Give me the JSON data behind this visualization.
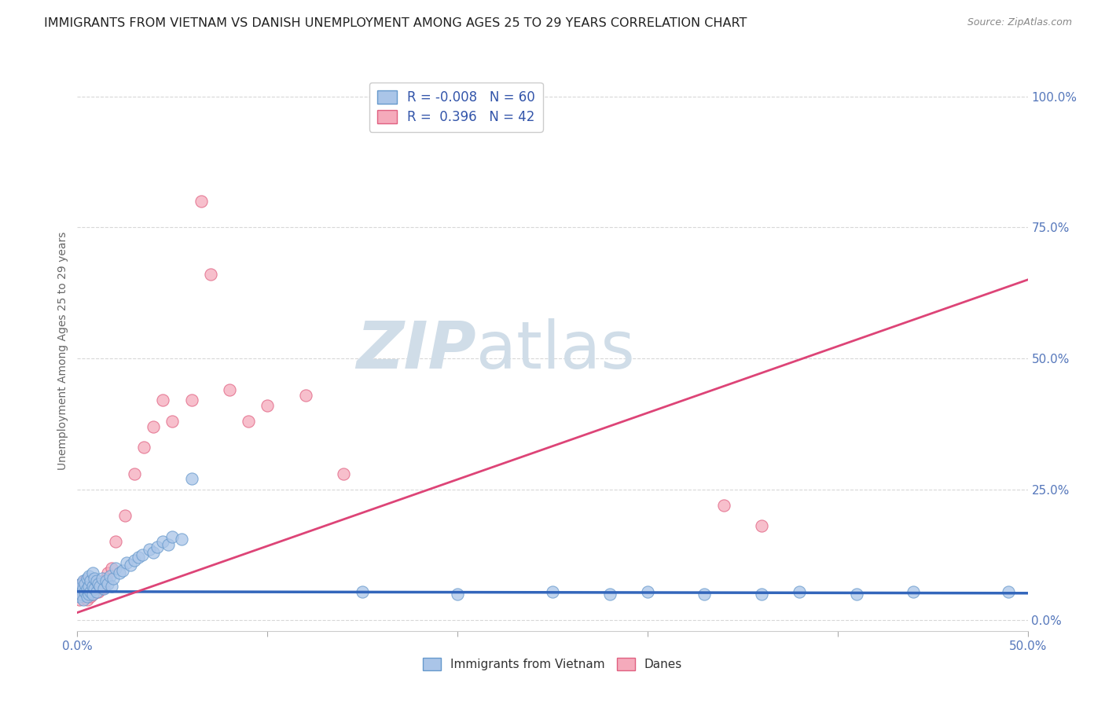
{
  "title": "IMMIGRANTS FROM VIETNAM VS DANISH UNEMPLOYMENT AMONG AGES 25 TO 29 YEARS CORRELATION CHART",
  "source": "Source: ZipAtlas.com",
  "ylabel": "Unemployment Among Ages 25 to 29 years",
  "xlim": [
    0.0,
    0.5
  ],
  "ylim": [
    -0.02,
    1.05
  ],
  "right_yticks": [
    0.0,
    0.25,
    0.5,
    0.75,
    1.0
  ],
  "right_yticklabels": [
    "0.0%",
    "25.0%",
    "50.0%",
    "75.0%",
    "100.0%"
  ],
  "watermark_zip": "ZIP",
  "watermark_atlas": "atlas",
  "legend_entries": [
    {
      "r": "-0.008",
      "n": "60",
      "color": "#aac5e8"
    },
    {
      "r": "0.396",
      "n": "42",
      "color": "#f5aabb"
    }
  ],
  "blue_color": "#aac5e8",
  "blue_edge": "#6699cc",
  "pink_color": "#f5aabb",
  "pink_edge": "#e06080",
  "blue_line_color": "#3366bb",
  "pink_line_color": "#dd4477",
  "blue_points_x": [
    0.001,
    0.001,
    0.002,
    0.002,
    0.003,
    0.003,
    0.003,
    0.004,
    0.004,
    0.005,
    0.005,
    0.005,
    0.006,
    0.006,
    0.006,
    0.007,
    0.007,
    0.008,
    0.008,
    0.008,
    0.009,
    0.009,
    0.01,
    0.01,
    0.011,
    0.012,
    0.013,
    0.014,
    0.015,
    0.016,
    0.017,
    0.018,
    0.019,
    0.02,
    0.022,
    0.024,
    0.026,
    0.028,
    0.03,
    0.032,
    0.034,
    0.038,
    0.04,
    0.042,
    0.045,
    0.048,
    0.05,
    0.055,
    0.06,
    0.15,
    0.2,
    0.25,
    0.28,
    0.3,
    0.33,
    0.36,
    0.38,
    0.41,
    0.44,
    0.49
  ],
  "blue_points_y": [
    0.045,
    0.06,
    0.05,
    0.07,
    0.04,
    0.06,
    0.075,
    0.055,
    0.07,
    0.045,
    0.06,
    0.08,
    0.05,
    0.065,
    0.085,
    0.055,
    0.075,
    0.05,
    0.065,
    0.09,
    0.06,
    0.08,
    0.055,
    0.075,
    0.07,
    0.065,
    0.08,
    0.06,
    0.075,
    0.07,
    0.085,
    0.065,
    0.08,
    0.1,
    0.09,
    0.095,
    0.11,
    0.105,
    0.115,
    0.12,
    0.125,
    0.135,
    0.13,
    0.14,
    0.15,
    0.145,
    0.16,
    0.155,
    0.27,
    0.055,
    0.05,
    0.055,
    0.05,
    0.055,
    0.05,
    0.05,
    0.055,
    0.05,
    0.055,
    0.055
  ],
  "pink_points_x": [
    0.001,
    0.001,
    0.002,
    0.002,
    0.003,
    0.003,
    0.004,
    0.004,
    0.005,
    0.005,
    0.006,
    0.006,
    0.007,
    0.007,
    0.008,
    0.008,
    0.009,
    0.01,
    0.011,
    0.012,
    0.013,
    0.014,
    0.015,
    0.016,
    0.018,
    0.02,
    0.025,
    0.03,
    0.035,
    0.04,
    0.045,
    0.05,
    0.06,
    0.065,
    0.07,
    0.08,
    0.09,
    0.1,
    0.12,
    0.14,
    0.34,
    0.36
  ],
  "pink_points_y": [
    0.04,
    0.06,
    0.05,
    0.07,
    0.045,
    0.065,
    0.055,
    0.075,
    0.04,
    0.06,
    0.05,
    0.07,
    0.045,
    0.065,
    0.05,
    0.075,
    0.06,
    0.07,
    0.055,
    0.065,
    0.06,
    0.075,
    0.08,
    0.09,
    0.1,
    0.15,
    0.2,
    0.28,
    0.33,
    0.37,
    0.42,
    0.38,
    0.42,
    0.8,
    0.66,
    0.44,
    0.38,
    0.41,
    0.43,
    0.28,
    0.22,
    0.18
  ],
  "blue_trend_x": [
    0.0,
    0.5
  ],
  "blue_trend_y": [
    0.055,
    0.052
  ],
  "pink_trend_x": [
    0.0,
    0.5
  ],
  "pink_trend_y": [
    0.015,
    0.65
  ],
  "grid_color": "#d8d8d8",
  "xticks": [
    0.0,
    0.1,
    0.2,
    0.3,
    0.4,
    0.5
  ],
  "xtick_minor": [
    0.05,
    0.15,
    0.25,
    0.35,
    0.45
  ],
  "title_fontsize": 11.5,
  "axis_label_fontsize": 10,
  "tick_fontsize": 11,
  "watermark_fontsize_zip": 60,
  "watermark_fontsize_atlas": 60,
  "watermark_color": "#d0dde8",
  "tick_color": "#5577bb"
}
